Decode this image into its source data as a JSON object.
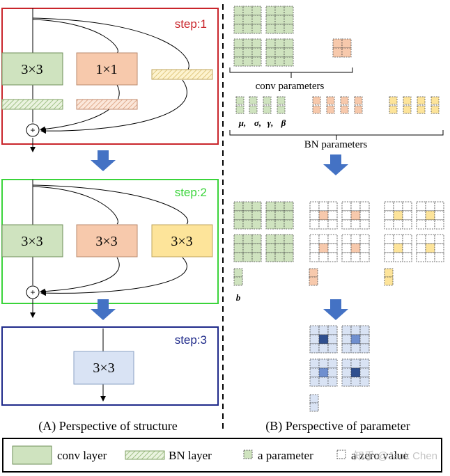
{
  "structure": {
    "step1_label": "step:1",
    "step2_label": "step:2",
    "step3_label": "step:3",
    "kernel_3x3": "3×3",
    "kernel_1x1": "1×1",
    "sum_symbol": "+"
  },
  "parameters": {
    "conv_parameters_label": "conv parameters",
    "bn_symbols": [
      "μ,",
      "σ,",
      "γ,",
      "β"
    ],
    "bn_parameters_label": "BN parameters",
    "bias_label": "b"
  },
  "captions": {
    "left": "(A) Perspective of structure",
    "right": "(B) Perspective of parameter"
  },
  "legend": {
    "conv_layer": "conv layer",
    "bn_layer": "BN layer",
    "a_parameter": "a parameter",
    "a_zero_value": "a zero value"
  },
  "watermark": "知乎 @Jack Chen",
  "colors": {
    "green": "#cfe3bf",
    "green_stroke": "#6f8f5a",
    "orange": "#f7c9ac",
    "orange_stroke": "#b98a6e",
    "yellow": "#fde49a",
    "blue_light": "#d9e3f4",
    "blue_dark": "#2f4f8f",
    "step1": "#c9252b",
    "step2": "#3ad43a",
    "step3": "#1f2a8a",
    "arrow": "#4472c4"
  }
}
